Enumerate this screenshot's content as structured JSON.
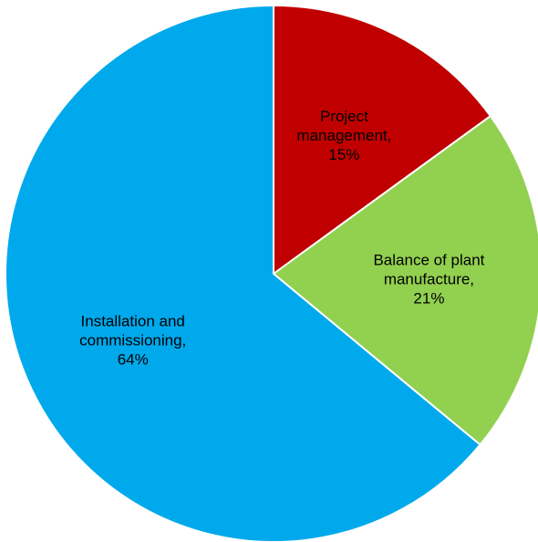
{
  "chart_data": {
    "type": "pie",
    "title": "",
    "slices": [
      {
        "category": "Project management",
        "value": 15,
        "value_label": "15%",
        "label_lines": [
          "Project",
          "management,",
          "15%"
        ],
        "color": "#C00000"
      },
      {
        "category": "Balance of plant manufacture",
        "value": 21,
        "value_label": "21%",
        "label_lines": [
          "Balance of plant",
          "manufacture,",
          "21%"
        ],
        "color": "#92D050"
      },
      {
        "category": "Installation and commissioning",
        "value": 64,
        "value_label": "64%",
        "label_lines": [
          "Installation and",
          "commissioning,",
          "64%"
        ],
        "color": "#00A9EC"
      }
    ],
    "start_angle": "12 o'clock",
    "direction": "clockwise",
    "legend": "none"
  }
}
